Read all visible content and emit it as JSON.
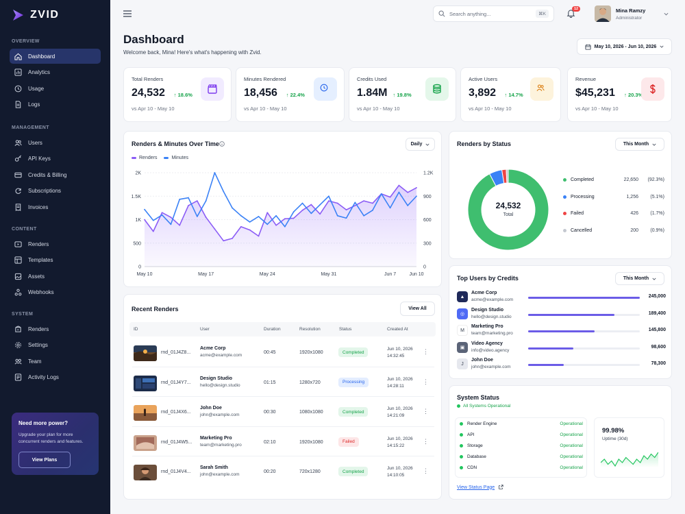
{
  "brand": {
    "name": "ZVID"
  },
  "sidebar": {
    "sections": [
      {
        "label": "OVERVIEW",
        "items": [
          {
            "label": "Dashboard",
            "icon": "home-icon",
            "active": true
          },
          {
            "label": "Analytics",
            "icon": "analytics-icon"
          },
          {
            "label": "Usage",
            "icon": "clock-icon"
          },
          {
            "label": "Logs",
            "icon": "file-icon"
          }
        ]
      },
      {
        "label": "MANAGEMENT",
        "items": [
          {
            "label": "Users",
            "icon": "users-icon"
          },
          {
            "label": "API Keys",
            "icon": "key-icon"
          },
          {
            "label": "Credits & Billing",
            "icon": "credit-card-icon"
          },
          {
            "label": "Subscriptions",
            "icon": "refresh-icon"
          },
          {
            "label": "Invoices",
            "icon": "invoice-icon"
          }
        ]
      },
      {
        "label": "CONTENT",
        "items": [
          {
            "label": "Renders",
            "icon": "video-icon"
          },
          {
            "label": "Templates",
            "icon": "template-icon"
          },
          {
            "label": "Assets",
            "icon": "assets-icon"
          },
          {
            "label": "Webhooks",
            "icon": "webhook-icon"
          }
        ]
      },
      {
        "label": "SYSTEM",
        "items": [
          {
            "label": "Renders",
            "icon": "render-icon"
          },
          {
            "label": "Settings",
            "icon": "gear-icon"
          },
          {
            "label": "Team",
            "icon": "team-icon"
          },
          {
            "label": "Activity Logs",
            "icon": "activity-icon"
          }
        ]
      }
    ],
    "promo": {
      "title": "Need more power?",
      "text": "Upgrade your plan for more concurrent renders and features.",
      "button": "View Plans"
    }
  },
  "topbar": {
    "search_placeholder": "Search anything...",
    "shortcut": "⌘K",
    "notifications": "12",
    "user_name": "Mina Ramzy",
    "user_role": "Administrator"
  },
  "header": {
    "title": "Dashboard",
    "subtitle": "Welcome back, Mina! Here's what's happening with Zvid.",
    "date_range": "May 10, 2026 - Jun 10, 2026"
  },
  "stats": [
    {
      "label": "Total Renders",
      "value": "24,532",
      "change": "18.6%",
      "sub": "vs Apr 10 - May 10",
      "icon": "clapperboard-icon",
      "color": "#7c3aed",
      "bg": "#f1ebff"
    },
    {
      "label": "Minutes Rendered",
      "value": "18,456",
      "change": "22.4%",
      "sub": "vs Apr 10 - May 10",
      "icon": "clock-icon",
      "color": "#2563eb",
      "bg": "#e5efff"
    },
    {
      "label": "Credits Used",
      "value": "1.84M",
      "change": "19.8%",
      "sub": "vs Apr 10 - May 10",
      "icon": "database-icon",
      "color": "#16a34a",
      "bg": "#e4f7ea"
    },
    {
      "label": "Active Users",
      "value": "3,892",
      "change": "14.7%",
      "sub": "vs Apr 10 - May 10",
      "icon": "users-icon",
      "color": "#d97706",
      "bg": "#fdf3dc"
    },
    {
      "label": "Revenue",
      "value": "$45,231",
      "change": "20.3%",
      "sub": "vs Apr 10 - May 10",
      "icon": "dollar-icon",
      "color": "#dc2626",
      "bg": "#fde8ea"
    }
  ],
  "line_chart": {
    "title": "Renders & Minutes Over Time",
    "period": "Daily",
    "chart_data": {
      "type": "line",
      "title": "Renders & Minutes Over Time",
      "x": [
        "May 10",
        "May 11",
        "May 12",
        "May 13",
        "May 14",
        "May 15",
        "May 16",
        "May 17",
        "May 18",
        "May 19",
        "May 20",
        "May 21",
        "May 22",
        "May 23",
        "May 24",
        "May 25",
        "May 26",
        "May 27",
        "May 28",
        "May 29",
        "May 30",
        "May 31",
        "Jun 1",
        "Jun 2",
        "Jun 3",
        "Jun 4",
        "Jun 5",
        "Jun 6",
        "Jun 7",
        "Jun 8",
        "Jun 9",
        "Jun 10"
      ],
      "xticks": [
        "May 10",
        "May 17",
        "May 24",
        "May 31",
        "Jun 7",
        "Jun 10"
      ],
      "series": [
        {
          "name": "Renders",
          "axis": "left",
          "color": "#8b5cf6",
          "values": [
            1000,
            750,
            1150,
            1050,
            880,
            1300,
            1400,
            1050,
            800,
            550,
            600,
            850,
            780,
            650,
            1150,
            880,
            1020,
            1030,
            1200,
            1320,
            1120,
            1400,
            1350,
            1210,
            1300,
            1400,
            1350,
            1550,
            1480,
            1730,
            1580,
            1680
          ]
        },
        {
          "name": "Minutes",
          "axis": "right",
          "color": "#3b82f6",
          "values": [
            730,
            590,
            660,
            540,
            860,
            880,
            640,
            840,
            1200,
            960,
            750,
            650,
            570,
            640,
            540,
            650,
            510,
            700,
            810,
            680,
            790,
            900,
            650,
            620,
            820,
            650,
            720,
            930,
            750,
            950,
            780,
            900
          ]
        }
      ],
      "ylim_left": [
        0,
        2000
      ],
      "yticks_left": [
        "0",
        "500",
        "1K",
        "1.5K",
        "2K"
      ],
      "ylim_right": [
        0,
        1200
      ],
      "yticks_right": [
        "0",
        "300",
        "600",
        "900",
        "1.2K"
      ],
      "legend": "top-left"
    }
  },
  "donut": {
    "title": "Renders by Status",
    "period": "This Month",
    "total": "24,532",
    "total_label": "Total",
    "chart_data": {
      "type": "pie",
      "title": "Renders by Status",
      "labels": [
        "Completed",
        "Processing",
        "Failed",
        "Cancelled"
      ],
      "values": [
        22650,
        1256,
        426,
        200
      ],
      "display_values": [
        "22,650",
        "1,256",
        "426",
        "200"
      ],
      "percents": [
        "(92.3%)",
        "(5.1%)",
        "(1.7%)",
        "(0.9%)"
      ],
      "colors": [
        "#3fbe6f",
        "#3b82f6",
        "#ef4444",
        "#c4c8d0"
      ]
    }
  },
  "recent": {
    "title": "Recent Renders",
    "view_all": "View All",
    "columns": [
      "ID",
      "User",
      "Duration",
      "Resolution",
      "Status",
      "Created At"
    ],
    "rows": [
      {
        "id": "rnd_01J4Z8...",
        "user": "Acme Corp",
        "email": "acme@example.com",
        "duration": "00:45",
        "resolution": "1920x1080",
        "status": "Completed",
        "date": "Jun 10, 2026",
        "time": "14:32:45",
        "thumb": "landscape"
      },
      {
        "id": "rnd_01J4Y7...",
        "user": "Design Studio",
        "email": "hello@design.studio",
        "duration": "01:15",
        "resolution": "1280x720",
        "status": "Processing",
        "date": "Jun 10, 2026",
        "time": "14:28:11",
        "thumb": "ui"
      },
      {
        "id": "rnd_01J4X6...",
        "user": "John Doe",
        "email": "john@example.com",
        "duration": "00:30",
        "resolution": "1080x1080",
        "status": "Completed",
        "date": "Jun 10, 2026",
        "time": "14:21:09",
        "thumb": "sunset"
      },
      {
        "id": "rnd_01J4W5...",
        "user": "Marketing Pro",
        "email": "team@marketing.pro",
        "duration": "02:10",
        "resolution": "1920x1080",
        "status": "Failed",
        "date": "Jun 10, 2026",
        "time": "14:15:22",
        "thumb": "hands"
      },
      {
        "id": "rnd_01J4V4...",
        "user": "Sarah Smith",
        "email": "john@example.com",
        "duration": "00:20",
        "resolution": "720x1280",
        "status": "Completed",
        "date": "Jun 10, 2026",
        "time": "14:10:05",
        "thumb": "portrait"
      }
    ],
    "status_colors": {
      "Completed": {
        "bg": "#e3f6ea",
        "fg": "#16a34a"
      },
      "Processing": {
        "bg": "#e3edff",
        "fg": "#2563eb"
      },
      "Failed": {
        "bg": "#fde6e7",
        "fg": "#dc2626"
      }
    }
  },
  "top_users": {
    "title": "Top Users by Credits",
    "period": "This Month",
    "chart_data": {
      "type": "bar",
      "categories": [
        "Acme Corp",
        "Design Studio",
        "Marketing Pro",
        "Video Agency",
        "John Doe"
      ],
      "values": [
        245000,
        189400,
        145800,
        98600,
        78300
      ],
      "display_values": [
        "245,000",
        "189,400",
        "145,800",
        "98,600",
        "78,300"
      ],
      "bar_color": "#6b5ce7"
    },
    "users": [
      {
        "name": "Acme Corp",
        "email": "acme@example.com",
        "avatar_color": "#1f2a5a",
        "avatar_glyph": "▲"
      },
      {
        "name": "Design Studio",
        "email": "hello@design.studio",
        "avatar_color": "#4f6af5",
        "avatar_glyph": "◎"
      },
      {
        "name": "Marketing Pro",
        "email": "team@marketing.pro",
        "avatar_color": "#ffffff",
        "avatar_glyph": "M"
      },
      {
        "name": "Video Agency",
        "email": "info@video.agency",
        "avatar_color": "#5b6478",
        "avatar_glyph": "▣"
      },
      {
        "name": "John Doe",
        "email": "john@example.com",
        "avatar_color": "#e6e8ee",
        "avatar_glyph": "J"
      }
    ]
  },
  "system_status": {
    "title": "System Status",
    "overall": "All Systems Operational",
    "services": [
      {
        "name": "Render Engine",
        "status": "Operational"
      },
      {
        "name": "API",
        "status": "Operational"
      },
      {
        "name": "Storage",
        "status": "Operational"
      },
      {
        "name": "Database",
        "status": "Operational"
      },
      {
        "name": "CDN",
        "status": "Operational"
      }
    ],
    "uptime_value": "99.98%",
    "uptime_label": "Uptime (30d)",
    "uptime_trend": [
      4,
      6,
      3,
      5,
      2,
      6,
      4,
      7,
      5,
      3,
      6,
      4,
      8,
      6,
      9,
      7,
      10
    ],
    "link": "View Status Page"
  }
}
